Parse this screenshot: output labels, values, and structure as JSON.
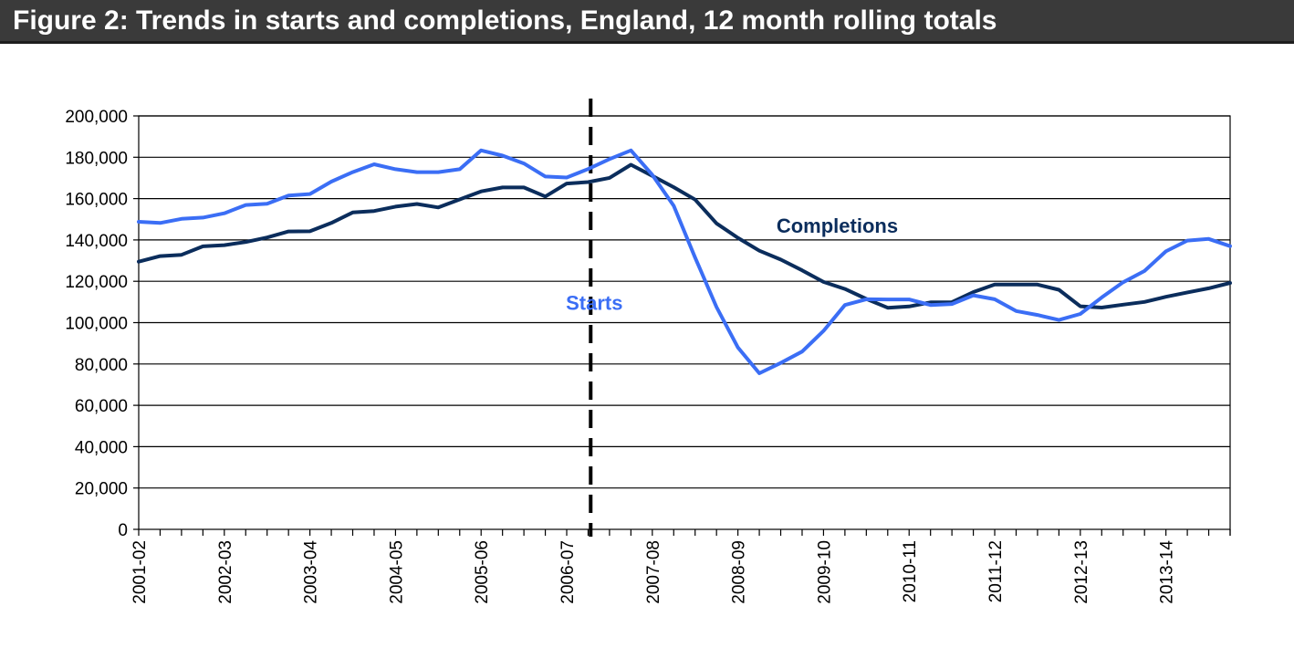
{
  "chart_data": {
    "type": "line",
    "title": "Figure 2: Trends in starts and completions, England, 12 month rolling totals",
    "xlabel": "",
    "ylabel": "",
    "ylim": [
      0,
      200000
    ],
    "yticks": [
      0,
      20000,
      40000,
      60000,
      80000,
      100000,
      120000,
      140000,
      160000,
      180000,
      200000
    ],
    "ytick_labels": [
      "0",
      "20,000",
      "40,000",
      "60,000",
      "80,000",
      "100,000",
      "120,000",
      "140,000",
      "160,000",
      "180,000",
      "200,000"
    ],
    "categories": [
      "2001-02",
      "2002-03",
      "2003-04",
      "2004-05",
      "2005-06",
      "2006-07",
      "2007-08",
      "2008-09",
      "2009-10",
      "2010-11",
      "2011-12",
      "2012-13",
      "2013-14"
    ],
    "grid": true,
    "x": [
      0,
      0.25,
      0.5,
      0.75,
      1,
      1.25,
      1.5,
      1.75,
      2,
      2.25,
      2.5,
      2.75,
      3,
      3.25,
      3.5,
      3.75,
      4,
      4.25,
      4.5,
      4.75,
      5,
      5.25,
      5.5,
      5.75,
      6,
      6.25,
      6.5,
      6.75,
      7,
      7.25,
      7.5,
      7.75,
      8,
      8.25,
      8.5,
      8.75,
      9,
      9.25,
      9.5,
      9.75,
      10,
      10.25,
      10.5,
      10.75,
      11,
      11.25,
      11.5,
      11.75,
      12,
      12.25,
      12.5,
      12.75
    ],
    "series": [
      {
        "name": "Completions",
        "color": "#0b2d5c",
        "values": [
          129500,
          132200,
          132800,
          136900,
          137500,
          139000,
          141200,
          144100,
          144200,
          148200,
          153300,
          154000,
          156100,
          157400,
          155700,
          159600,
          163500,
          165400,
          165400,
          161000,
          167300,
          168000,
          170000,
          176400,
          171000,
          165500,
          159500,
          148000,
          141000,
          134800,
          130500,
          125300,
          119700,
          116300,
          111500,
          107200,
          107800,
          109800,
          109900,
          114800,
          118400,
          118400,
          118400,
          115900,
          107900,
          107300,
          108700,
          110000,
          112500,
          114600,
          116600,
          119200
        ]
      },
      {
        "name": "Starts",
        "color": "#3b6ef5",
        "values": [
          148800,
          148200,
          150200,
          150800,
          152900,
          156900,
          157500,
          161500,
          162200,
          168200,
          172800,
          176600,
          174200,
          172800,
          172800,
          174200,
          183300,
          180800,
          177000,
          170700,
          170200,
          174300,
          179100,
          183300,
          171500,
          156500,
          131500,
          107500,
          88000,
          75500,
          80500,
          86000,
          96000,
          108500,
          111300,
          111200,
          111200,
          108500,
          109000,
          113200,
          111300,
          105600,
          103700,
          101300,
          104200,
          112200,
          119500,
          125000,
          134500,
          139700,
          140500,
          137000
        ]
      }
    ],
    "marker_line": {
      "x": 5.28,
      "style": "dashed"
    },
    "annotations": [
      {
        "text": "Completions",
        "x": 7.45,
        "y": 147000,
        "series": "Completions"
      },
      {
        "text": "Starts",
        "x": 4.99,
        "y": 109800,
        "series": "Starts"
      }
    ]
  }
}
